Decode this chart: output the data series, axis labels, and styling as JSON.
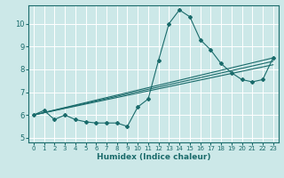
{
  "xlabel": "Humidex (Indice chaleur)",
  "bg_color": "#cce8e8",
  "grid_color": "#ffffff",
  "line_color": "#1a6b6b",
  "xlim": [
    -0.5,
    23.5
  ],
  "ylim": [
    4.8,
    10.8
  ],
  "xticks": [
    0,
    1,
    2,
    3,
    4,
    5,
    6,
    7,
    8,
    9,
    10,
    11,
    12,
    13,
    14,
    15,
    16,
    17,
    18,
    19,
    20,
    21,
    22,
    23
  ],
  "yticks": [
    5,
    6,
    7,
    8,
    9,
    10
  ],
  "main_series": {
    "x": [
      0,
      1,
      2,
      3,
      4,
      5,
      6,
      7,
      8,
      9,
      10,
      11,
      12,
      13,
      14,
      15,
      16,
      17,
      18,
      19,
      20,
      21,
      22,
      23
    ],
    "y": [
      6.0,
      6.2,
      5.8,
      6.0,
      5.8,
      5.7,
      5.65,
      5.65,
      5.65,
      5.5,
      6.35,
      6.7,
      8.4,
      10.0,
      10.6,
      10.3,
      9.3,
      8.85,
      8.25,
      7.85,
      7.55,
      7.45,
      7.55,
      8.5
    ]
  },
  "trend_lines": [
    {
      "x": [
        0,
        23
      ],
      "y": [
        6.0,
        8.5
      ]
    },
    {
      "x": [
        0,
        23
      ],
      "y": [
        6.0,
        8.35
      ]
    },
    {
      "x": [
        0,
        23
      ],
      "y": [
        6.0,
        8.2
      ]
    }
  ]
}
